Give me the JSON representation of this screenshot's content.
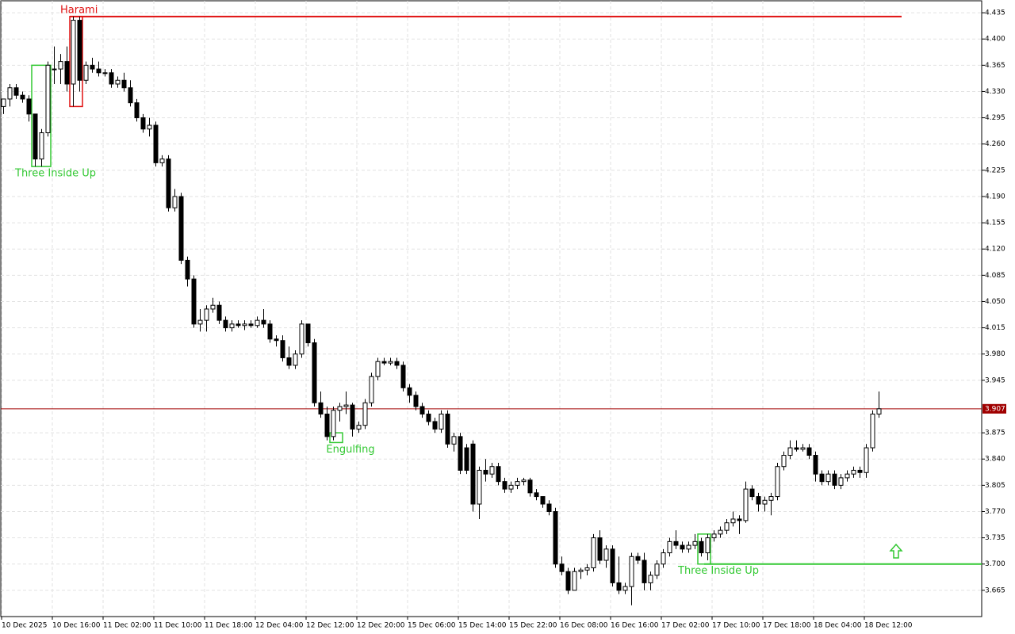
{
  "chart_data": {
    "type": "candlestick",
    "ylim": [
      3.63,
      4.452
    ],
    "yticks": [
      4.435,
      {
        "value": 4.4,
        "label": "4.400"
      },
      4.365,
      {
        "value": 4.33,
        "label": "4.330"
      },
      4.295,
      {
        "value": 4.26,
        "label": "4.260"
      },
      4.225,
      {
        "value": 4.19,
        "label": "4.190"
      },
      4.155,
      {
        "value": 4.12,
        "label": "4.120"
      },
      4.085,
      {
        "value": 4.05,
        "label": "4.050"
      },
      4.015,
      {
        "value": 3.98,
        "label": "3.980"
      },
      3.945,
      3.875,
      {
        "value": 3.84,
        "label": "3.840"
      },
      3.805,
      {
        "value": 3.77,
        "label": "3.770"
      },
      3.735,
      {
        "value": 3.7,
        "label": "3.700"
      },
      3.665
    ],
    "grid": true,
    "categories": [
      "10 Dec 2025",
      null,
      null,
      null,
      null,
      null,
      null,
      null,
      "10 Dec 16:00",
      null,
      null,
      null,
      null,
      null,
      null,
      null,
      "11 Dec 02:00",
      null,
      null,
      null,
      null,
      null,
      null,
      null,
      "11 Dec 10:00",
      null,
      null,
      null,
      null,
      null,
      null,
      null,
      "11 Dec 18:00",
      null,
      null,
      null,
      null,
      null,
      null,
      null,
      "12 Dec 04:00",
      null,
      null,
      null,
      null,
      null,
      null,
      null,
      "12 Dec 12:00",
      null,
      null,
      null,
      null,
      null,
      null,
      null,
      "12 Dec 20:00",
      null,
      null,
      null,
      null,
      null,
      null,
      null,
      "15 Dec 06:00",
      null,
      null,
      null,
      null,
      null,
      null,
      null,
      "15 Dec 14:00",
      null,
      null,
      null,
      null,
      null,
      null,
      null,
      "15 Dec 22:00",
      null,
      null,
      null,
      null,
      null,
      null,
      null,
      "16 Dec 08:00",
      null,
      null,
      null,
      null,
      null,
      null,
      null,
      "16 Dec 16:00",
      null,
      null,
      null,
      null,
      null,
      null,
      null,
      "17 Dec 02:00",
      null,
      null,
      null,
      null,
      null,
      null,
      null,
      "17 Dec 10:00",
      null,
      null,
      null,
      null,
      null,
      null,
      null,
      "17 Dec 18:00",
      null,
      null,
      null,
      null,
      null,
      null,
      null,
      "18 Dec 04:00",
      null,
      null,
      null,
      null,
      null,
      null,
      null,
      "18 Dec 12:00",
      null,
      null
    ],
    "ohlc": [
      [
        4.31,
        4.32,
        4.3,
        4.32
      ],
      [
        4.32,
        4.34,
        4.31,
        4.335
      ],
      [
        4.335,
        4.34,
        4.32,
        4.325
      ],
      [
        4.325,
        4.33,
        4.315,
        4.32
      ],
      [
        4.32,
        4.325,
        4.29,
        4.3
      ],
      [
        4.3,
        4.3,
        4.23,
        4.24
      ],
      [
        4.24,
        4.28,
        4.23,
        4.275
      ],
      [
        4.275,
        4.37,
        4.27,
        4.365
      ],
      [
        4.36,
        4.39,
        4.34,
        4.36
      ],
      [
        4.36,
        4.38,
        4.34,
        4.37
      ],
      [
        4.37,
        4.39,
        4.33,
        4.34
      ],
      [
        4.34,
        4.43,
        4.31,
        4.425
      ],
      [
        4.425,
        4.43,
        4.33,
        4.345
      ],
      [
        4.345,
        4.37,
        4.34,
        4.365
      ],
      [
        4.365,
        4.375,
        4.355,
        4.36
      ],
      [
        4.36,
        4.37,
        4.35,
        4.355
      ],
      [
        4.355,
        4.36,
        4.35,
        4.355
      ],
      [
        4.355,
        4.36,
        4.335,
        4.34
      ],
      [
        4.34,
        4.35,
        4.335,
        4.345
      ],
      [
        4.345,
        4.355,
        4.33,
        4.335
      ],
      [
        4.335,
        4.345,
        4.31,
        4.315
      ],
      [
        4.315,
        4.32,
        4.29,
        4.295
      ],
      [
        4.295,
        4.3,
        4.275,
        4.28
      ],
      [
        4.28,
        4.295,
        4.27,
        4.285
      ],
      [
        4.285,
        4.29,
        4.23,
        4.235
      ],
      [
        4.235,
        4.245,
        4.23,
        4.24
      ],
      [
        4.24,
        4.245,
        4.17,
        4.175
      ],
      [
        4.175,
        4.2,
        4.17,
        4.19
      ],
      [
        4.19,
        4.195,
        4.1,
        4.105
      ],
      [
        4.105,
        4.11,
        4.07,
        4.08
      ],
      [
        4.08,
        4.085,
        4.015,
        4.02
      ],
      [
        4.02,
        4.04,
        4.01,
        4.025
      ],
      [
        4.025,
        4.045,
        4.01,
        4.04
      ],
      [
        4.04,
        4.055,
        4.035,
        4.045
      ],
      [
        4.045,
        4.05,
        4.02,
        4.025
      ],
      [
        4.025,
        4.03,
        4.01,
        4.015
      ],
      [
        4.015,
        4.025,
        4.01,
        4.02
      ],
      [
        4.02,
        4.025,
        4.015,
        4.018
      ],
      [
        4.018,
        4.025,
        4.012,
        4.02
      ],
      [
        4.02,
        4.025,
        4.015,
        4.018
      ],
      [
        4.018,
        4.03,
        4.015,
        4.025
      ],
      [
        4.025,
        4.04,
        4.015,
        4.02
      ],
      [
        4.02,
        4.025,
        3.995,
        4.0
      ],
      [
        4.0,
        4.005,
        3.99,
        3.998
      ],
      [
        3.998,
        4.005,
        3.97,
        3.975
      ],
      [
        3.975,
        3.99,
        3.96,
        3.965
      ],
      [
        3.965,
        3.985,
        3.96,
        3.98
      ],
      [
        3.98,
        4.025,
        3.975,
        4.02
      ],
      [
        4.02,
        4.02,
        3.99,
        3.995
      ],
      [
        3.995,
        4.0,
        3.91,
        3.915
      ],
      [
        3.915,
        3.93,
        3.895,
        3.9
      ],
      [
        3.9,
        3.91,
        3.865,
        3.87
      ],
      [
        3.87,
        3.91,
        3.865,
        3.905
      ],
      [
        3.905,
        3.915,
        3.89,
        3.91
      ],
      [
        3.91,
        3.93,
        3.9,
        3.912
      ],
      [
        3.912,
        3.915,
        3.87,
        3.88
      ],
      [
        3.88,
        3.89,
        3.875,
        3.885
      ],
      [
        3.885,
        3.92,
        3.88,
        3.915
      ],
      [
        3.915,
        3.955,
        3.91,
        3.95
      ],
      [
        3.95,
        3.975,
        3.945,
        3.97
      ],
      [
        3.97,
        3.975,
        3.965,
        3.968
      ],
      [
        3.968,
        3.975,
        3.965,
        3.97
      ],
      [
        3.97,
        3.975,
        3.96,
        3.965
      ],
      [
        3.965,
        3.97,
        3.93,
        3.935
      ],
      [
        3.935,
        3.94,
        3.915,
        3.925
      ],
      [
        3.925,
        3.93,
        3.905,
        3.91
      ],
      [
        3.91,
        3.915,
        3.895,
        3.9
      ],
      [
        3.9,
        3.905,
        3.885,
        3.89
      ],
      [
        3.89,
        3.895,
        3.875,
        3.88
      ],
      [
        3.88,
        3.905,
        3.875,
        3.9
      ],
      [
        3.9,
        3.905,
        3.855,
        3.86
      ],
      [
        3.86,
        3.875,
        3.85,
        3.87
      ],
      [
        3.87,
        3.875,
        3.82,
        3.825
      ],
      [
        3.855,
        3.86,
        3.82,
        3.825
      ],
      [
        3.86,
        3.865,
        3.77,
        3.78
      ],
      [
        3.78,
        3.83,
        3.76,
        3.825
      ],
      [
        3.825,
        3.84,
        3.81,
        3.82
      ],
      [
        3.82,
        3.835,
        3.815,
        3.83
      ],
      [
        3.83,
        3.835,
        3.805,
        3.81
      ],
      [
        3.81,
        3.815,
        3.795,
        3.8
      ],
      [
        3.8,
        3.81,
        3.795,
        3.805
      ],
      [
        3.805,
        3.815,
        3.8,
        3.81
      ],
      [
        3.81,
        3.815,
        3.805,
        3.812
      ],
      [
        3.812,
        3.815,
        3.79,
        3.795
      ],
      [
        3.795,
        3.8,
        3.785,
        3.79
      ],
      [
        3.79,
        3.79,
        3.775,
        3.78
      ],
      [
        3.78,
        3.785,
        3.765,
        3.77
      ],
      [
        3.77,
        3.775,
        3.695,
        3.7
      ],
      [
        3.7,
        3.71,
        3.685,
        3.69
      ],
      [
        3.69,
        3.695,
        3.66,
        3.665
      ],
      [
        3.665,
        3.695,
        3.665,
        3.69
      ],
      [
        3.69,
        3.695,
        3.68,
        3.692
      ],
      [
        3.692,
        3.7,
        3.685,
        3.695
      ],
      [
        3.695,
        3.74,
        3.69,
        3.735
      ],
      [
        3.735,
        3.745,
        3.7,
        3.705
      ],
      [
        3.705,
        3.725,
        3.695,
        3.72
      ],
      [
        3.72,
        3.725,
        3.67,
        3.675
      ],
      [
        3.675,
        3.71,
        3.66,
        3.665
      ],
      [
        3.665,
        3.675,
        3.66,
        3.67
      ],
      [
        3.67,
        3.715,
        3.645,
        3.71
      ],
      [
        3.71,
        3.715,
        3.7,
        3.705
      ],
      [
        3.705,
        3.715,
        3.665,
        3.675
      ],
      [
        3.675,
        3.69,
        3.665,
        3.685
      ],
      [
        3.685,
        3.705,
        3.68,
        3.7
      ],
      [
        3.7,
        3.72,
        3.695,
        3.715
      ],
      [
        3.715,
        3.735,
        3.71,
        3.73
      ],
      [
        3.73,
        3.745,
        3.72,
        3.725
      ],
      [
        3.725,
        3.73,
        3.715,
        3.72
      ],
      [
        3.72,
        3.73,
        3.715,
        3.725
      ],
      [
        3.725,
        3.74,
        3.72,
        3.73
      ],
      [
        3.73,
        3.735,
        3.71,
        3.715
      ],
      [
        3.715,
        3.74,
        3.705,
        3.735
      ],
      [
        3.735,
        3.745,
        3.73,
        3.74
      ],
      [
        3.74,
        3.75,
        3.735,
        3.745
      ],
      [
        3.745,
        3.76,
        3.74,
        3.755
      ],
      [
        3.755,
        3.77,
        3.75,
        3.76
      ],
      [
        3.76,
        3.765,
        3.74,
        3.758
      ],
      [
        3.758,
        3.81,
        3.755,
        3.8
      ],
      [
        3.8,
        3.805,
        3.785,
        3.79
      ],
      [
        3.79,
        3.795,
        3.77,
        3.78
      ],
      [
        3.78,
        3.79,
        3.77,
        3.785
      ],
      [
        3.785,
        3.795,
        3.765,
        3.79
      ],
      [
        3.79,
        3.835,
        3.785,
        3.83
      ],
      [
        3.83,
        3.85,
        3.825,
        3.845
      ],
      [
        3.845,
        3.865,
        3.84,
        3.855
      ],
      [
        3.855,
        3.865,
        3.85,
        3.853
      ],
      [
        3.853,
        3.86,
        3.85,
        3.855
      ],
      [
        3.855,
        3.86,
        3.84,
        3.845
      ],
      [
        3.845,
        3.85,
        3.81,
        3.82
      ],
      [
        3.82,
        3.825,
        3.805,
        3.81
      ],
      [
        3.81,
        3.825,
        3.805,
        3.82
      ],
      [
        3.82,
        3.825,
        3.8,
        3.805
      ],
      [
        3.805,
        3.82,
        3.8,
        3.815
      ],
      [
        3.815,
        3.825,
        3.81,
        3.82
      ],
      [
        3.82,
        3.83,
        3.815,
        3.825
      ],
      [
        3.825,
        3.83,
        3.815,
        3.822
      ],
      [
        3.822,
        3.86,
        3.815,
        3.855
      ],
      [
        3.855,
        3.905,
        3.85,
        3.9
      ],
      [
        3.9,
        3.93,
        3.895,
        3.907
      ]
    ],
    "current_price": 3.907,
    "patterns": [
      {
        "label": "Three Inside Up",
        "color": "#32c832",
        "start": 5,
        "end": 7,
        "high": 4.365,
        "low": 4.23,
        "label_position": "below"
      },
      {
        "label": "Harami",
        "color": "#e01010",
        "start": 11,
        "end": 12,
        "high": 4.43,
        "low": 4.31,
        "label_position": "above"
      },
      {
        "label": "Engulfing",
        "color": "#32c832",
        "start": 52,
        "end": 53,
        "high": 3.875,
        "low": 3.862,
        "label_position": "below"
      },
      {
        "label": "Three Inside Up",
        "color": "#32c832",
        "start": 110,
        "end": 111,
        "high": 3.74,
        "low": 3.7,
        "label_position": "below"
      }
    ],
    "levels": [
      {
        "value": 4.43,
        "color": "#e01010",
        "start": 11
      },
      {
        "value": 3.7,
        "color": "#32c832",
        "start": 111
      }
    ]
  }
}
